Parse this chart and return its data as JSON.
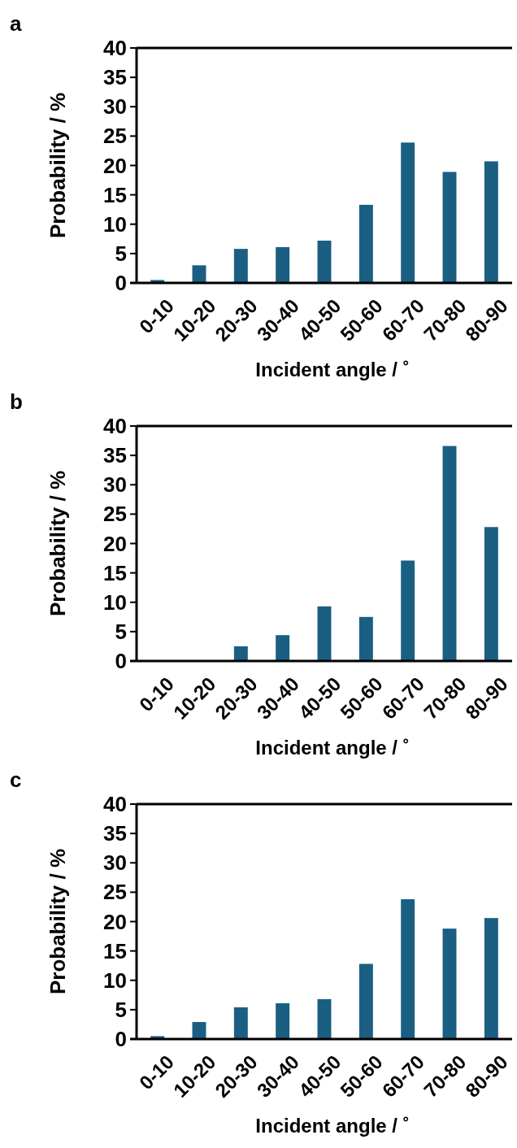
{
  "chart_data": [
    {
      "type": "bar",
      "title": "a",
      "categories": [
        "0-10",
        "10-20",
        "20-30",
        "30-40",
        "40-50",
        "50-60",
        "60-70",
        "70-80",
        "80-90"
      ],
      "values": [
        0.5,
        3.0,
        5.8,
        6.1,
        7.2,
        13.3,
        23.9,
        18.9,
        20.7
      ],
      "color": "#1a5f82",
      "xlabel": "Incident angle / ˚",
      "ylabel": "Probability / %",
      "ylim": [
        0,
        40
      ],
      "yticks": [
        0,
        5,
        10,
        15,
        20,
        25,
        30,
        35,
        40
      ]
    },
    {
      "type": "bar",
      "title": "b",
      "categories": [
        "0-10",
        "10-20",
        "20-30",
        "30-40",
        "40-50",
        "50-60",
        "60-70",
        "70-80",
        "80-90"
      ],
      "values": [
        0,
        0,
        2.5,
        4.4,
        9.3,
        7.5,
        17.1,
        36.6,
        22.8
      ],
      "color": "#1a5f82",
      "xlabel": "Incident angle / ˚",
      "ylabel": "Probability / %",
      "ylim": [
        0,
        40
      ],
      "yticks": [
        0,
        5,
        10,
        15,
        20,
        25,
        30,
        35,
        40
      ]
    },
    {
      "type": "bar",
      "title": "c",
      "categories": [
        "0-10",
        "10-20",
        "20-30",
        "30-40",
        "40-50",
        "50-60",
        "60-70",
        "70-80",
        "80-90"
      ],
      "values": [
        0.5,
        2.9,
        5.4,
        6.1,
        6.8,
        12.8,
        23.8,
        18.8,
        20.6
      ],
      "color": "#1a5f82",
      "xlabel": "Incident angle / ˚",
      "ylabel": "Probability / %",
      "ylim": [
        0,
        40
      ],
      "yticks": [
        0,
        5,
        10,
        15,
        20,
        25,
        30,
        35,
        40
      ]
    }
  ]
}
